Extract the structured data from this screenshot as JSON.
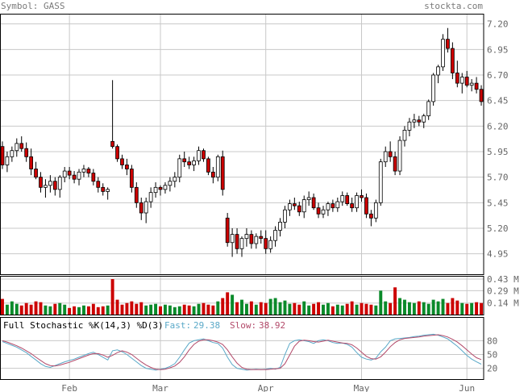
{
  "header": {
    "symbol_label": "Symbol: GASS",
    "site": "stockta.com"
  },
  "colors": {
    "up": "#ffffff",
    "down": "#cc0000",
    "vol_up": "#0a8a2a",
    "vol_down": "#cc0000",
    "grid": "#c8c8c8",
    "axis_text": "#666666",
    "fast_line": "#5aa9c8",
    "slow_line": "#b34a6a"
  },
  "chart_data": [
    {
      "type": "candlestick",
      "ylim": [
        4.75,
        7.3
      ],
      "y_ticks": [
        4.95,
        5.2,
        5.45,
        5.7,
        5.95,
        6.2,
        6.45,
        6.7,
        6.95,
        7.2
      ],
      "y_tick_labels": [
        "4.95",
        "5.20",
        "5.45",
        "5.70",
        "5.95",
        "6.20",
        "6.45",
        "6.70",
        "6.95",
        "7.20"
      ],
      "x_labels": [
        "Feb",
        "Mar",
        "Apr",
        "May",
        "Jun"
      ],
      "x_label_index": [
        14,
        33,
        55,
        75,
        97
      ],
      "ohlc": [
        [
          6.0,
          6.05,
          5.78,
          5.82
        ],
        [
          5.82,
          5.95,
          5.75,
          5.9
        ],
        [
          5.9,
          6.0,
          5.85,
          5.96
        ],
        [
          5.96,
          6.08,
          5.9,
          6.03
        ],
        [
          6.03,
          6.1,
          5.95,
          5.98
        ],
        [
          5.98,
          6.04,
          5.85,
          5.9
        ],
        [
          5.9,
          5.98,
          5.72,
          5.78
        ],
        [
          5.78,
          5.85,
          5.68,
          5.7
        ],
        [
          5.7,
          5.75,
          5.55,
          5.6
        ],
        [
          5.6,
          5.68,
          5.5,
          5.62
        ],
        [
          5.62,
          5.72,
          5.55,
          5.66
        ],
        [
          5.66,
          5.7,
          5.52,
          5.58
        ],
        [
          5.58,
          5.72,
          5.5,
          5.7
        ],
        [
          5.7,
          5.8,
          5.65,
          5.76
        ],
        [
          5.76,
          5.8,
          5.68,
          5.72
        ],
        [
          5.72,
          5.76,
          5.64,
          5.68
        ],
        [
          5.68,
          5.78,
          5.62,
          5.75
        ],
        [
          5.75,
          5.82,
          5.7,
          5.78
        ],
        [
          5.78,
          5.8,
          5.7,
          5.74
        ],
        [
          5.74,
          5.78,
          5.62,
          5.66
        ],
        [
          5.66,
          5.7,
          5.55,
          5.6
        ],
        [
          5.6,
          5.64,
          5.52,
          5.56
        ],
        [
          5.56,
          5.6,
          5.48,
          5.58
        ],
        [
          6.05,
          6.65,
          5.98,
          6.0
        ],
        [
          6.0,
          6.02,
          5.85,
          5.88
        ],
        [
          5.88,
          5.92,
          5.78,
          5.82
        ],
        [
          5.82,
          5.88,
          5.72,
          5.78
        ],
        [
          5.78,
          5.82,
          5.55,
          5.6
        ],
        [
          5.6,
          5.65,
          5.4,
          5.45
        ],
        [
          5.45,
          5.5,
          5.28,
          5.35
        ],
        [
          5.35,
          5.5,
          5.25,
          5.46
        ],
        [
          5.46,
          5.6,
          5.4,
          5.55
        ],
        [
          5.55,
          5.65,
          5.5,
          5.6
        ],
        [
          5.6,
          5.62,
          5.52,
          5.58
        ],
        [
          5.58,
          5.65,
          5.54,
          5.62
        ],
        [
          5.62,
          5.7,
          5.56,
          5.66
        ],
        [
          5.66,
          5.75,
          5.6,
          5.7
        ],
        [
          5.7,
          5.92,
          5.65,
          5.88
        ],
        [
          5.88,
          5.95,
          5.8,
          5.85
        ],
        [
          5.85,
          5.9,
          5.78,
          5.82
        ],
        [
          5.82,
          5.9,
          5.76,
          5.86
        ],
        [
          5.86,
          6.0,
          5.82,
          5.96
        ],
        [
          5.96,
          5.98,
          5.85,
          5.88
        ],
        [
          5.88,
          5.9,
          5.72,
          5.75
        ],
        [
          5.75,
          5.8,
          5.64,
          5.7
        ],
        [
          5.7,
          5.92,
          5.66,
          5.9
        ],
        [
          5.9,
          5.96,
          5.52,
          5.58
        ],
        [
          5.3,
          5.35,
          5.02,
          5.06
        ],
        [
          5.06,
          5.2,
          4.92,
          5.14
        ],
        [
          5.14,
          5.2,
          4.95,
          5.0
        ],
        [
          5.0,
          5.12,
          4.92,
          5.1
        ],
        [
          5.1,
          5.2,
          5.02,
          5.14
        ],
        [
          5.14,
          5.18,
          5.0,
          5.05
        ],
        [
          5.05,
          5.15,
          5.0,
          5.12
        ],
        [
          5.12,
          5.18,
          5.05,
          5.1
        ],
        [
          5.1,
          5.18,
          4.95,
          5.0
        ],
        [
          5.0,
          5.12,
          4.96,
          5.08
        ],
        [
          5.08,
          5.22,
          5.02,
          5.18
        ],
        [
          5.18,
          5.3,
          5.12,
          5.26
        ],
        [
          5.26,
          5.42,
          5.2,
          5.38
        ],
        [
          5.38,
          5.48,
          5.32,
          5.44
        ],
        [
          5.44,
          5.5,
          5.38,
          5.42
        ],
        [
          5.42,
          5.46,
          5.32,
          5.36
        ],
        [
          5.36,
          5.52,
          5.3,
          5.48
        ],
        [
          5.48,
          5.56,
          5.42,
          5.5
        ],
        [
          5.5,
          5.54,
          5.38,
          5.4
        ],
        [
          5.4,
          5.45,
          5.3,
          5.34
        ],
        [
          5.34,
          5.42,
          5.3,
          5.38
        ],
        [
          5.38,
          5.46,
          5.32,
          5.44
        ],
        [
          5.44,
          5.48,
          5.36,
          5.4
        ],
        [
          5.4,
          5.5,
          5.36,
          5.46
        ],
        [
          5.46,
          5.56,
          5.42,
          5.52
        ],
        [
          5.52,
          5.55,
          5.42,
          5.44
        ],
        [
          5.44,
          5.5,
          5.36,
          5.4
        ],
        [
          5.4,
          5.55,
          5.36,
          5.52
        ],
        [
          5.52,
          5.58,
          5.46,
          5.5
        ],
        [
          5.5,
          5.54,
          5.3,
          5.34
        ],
        [
          5.34,
          5.38,
          5.22,
          5.3
        ],
        [
          5.3,
          5.48,
          5.26,
          5.45
        ],
        [
          5.45,
          5.88,
          5.42,
          5.85
        ],
        [
          5.85,
          6.0,
          5.8,
          5.95
        ],
        [
          5.95,
          6.05,
          5.85,
          5.9
        ],
        [
          5.9,
          5.95,
          5.72,
          5.76
        ],
        [
          5.76,
          6.1,
          5.72,
          6.06
        ],
        [
          6.06,
          6.2,
          6.0,
          6.16
        ],
        [
          6.16,
          6.28,
          6.1,
          6.24
        ],
        [
          6.24,
          6.32,
          6.18,
          6.26
        ],
        [
          6.26,
          6.3,
          6.2,
          6.24
        ],
        [
          6.24,
          6.32,
          6.18,
          6.3
        ],
        [
          6.3,
          6.46,
          6.26,
          6.44
        ],
        [
          6.44,
          6.72,
          6.4,
          6.7
        ],
        [
          6.7,
          6.8,
          6.62,
          6.78
        ],
        [
          6.78,
          7.1,
          6.74,
          7.05
        ],
        [
          7.05,
          7.16,
          6.92,
          6.96
        ],
        [
          6.96,
          7.02,
          6.66,
          6.72
        ],
        [
          6.72,
          6.84,
          6.58,
          6.62
        ],
        [
          6.62,
          6.72,
          6.52,
          6.68
        ],
        [
          6.68,
          6.74,
          6.58,
          6.6
        ],
        [
          6.6,
          6.66,
          6.54,
          6.62
        ],
        [
          6.62,
          6.68,
          6.52,
          6.56
        ],
        [
          6.56,
          6.6,
          6.4,
          6.44
        ]
      ]
    },
    {
      "type": "bar",
      "series_name": "Volume",
      "y_tick_labels": [
        "0.43 M",
        "0.29 M",
        "0.14 M"
      ],
      "y_ticks": [
        0.43,
        0.29,
        0.14
      ],
      "ylim": [
        0,
        0.45
      ],
      "values": [
        0.19,
        0.12,
        0.16,
        0.13,
        0.11,
        0.14,
        0.12,
        0.16,
        0.15,
        0.11,
        0.1,
        0.13,
        0.14,
        0.12,
        0.08,
        0.1,
        0.09,
        0.11,
        0.1,
        0.13,
        0.09,
        0.1,
        0.11,
        0.43,
        0.18,
        0.12,
        0.14,
        0.16,
        0.13,
        0.15,
        0.11,
        0.12,
        0.13,
        0.1,
        0.12,
        0.11,
        0.09,
        0.1,
        0.12,
        0.11,
        0.1,
        0.13,
        0.14,
        0.12,
        0.11,
        0.16,
        0.2,
        0.27,
        0.24,
        0.15,
        0.18,
        0.13,
        0.16,
        0.12,
        0.15,
        0.14,
        0.19,
        0.2,
        0.15,
        0.17,
        0.13,
        0.14,
        0.12,
        0.16,
        0.11,
        0.13,
        0.15,
        0.12,
        0.14,
        0.1,
        0.12,
        0.11,
        0.13,
        0.16,
        0.12,
        0.14,
        0.13,
        0.12,
        0.11,
        0.29,
        0.16,
        0.14,
        0.33,
        0.2,
        0.18,
        0.15,
        0.14,
        0.16,
        0.15,
        0.13,
        0.18,
        0.16,
        0.19,
        0.14,
        0.2,
        0.17,
        0.14,
        0.13,
        0.14,
        0.15,
        0.14
      ]
    },
    {
      "type": "line",
      "title": "Full Stochastic %K(14,3) %D(3)",
      "fast_label": "Fast:",
      "fast_value": "29.38",
      "slow_label": "Slow:",
      "slow_value": "38.92",
      "y_tick_labels": [
        "80",
        "50",
        "20"
      ],
      "y_ticks": [
        80,
        50,
        20
      ],
      "ylim": [
        0,
        100
      ],
      "series": [
        {
          "values": [
            78,
            74,
            70,
            66,
            60,
            54,
            46,
            38,
            30,
            24,
            22,
            26,
            30,
            34,
            37,
            40,
            44,
            48,
            52,
            55,
            50,
            44,
            38,
            58,
            60,
            56,
            50,
            42,
            34,
            26,
            20,
            18,
            16,
            18,
            20,
            24,
            30,
            44,
            60,
            75,
            80,
            82,
            84,
            80,
            76,
            74,
            64,
            44,
            28,
            20,
            18,
            16,
            17,
            18,
            17,
            18,
            20,
            18,
            22,
            50,
            74,
            80,
            82,
            80,
            78,
            74,
            80,
            82,
            80,
            76,
            74,
            75,
            72,
            66,
            54,
            44,
            40,
            38,
            42,
            56,
            66,
            80,
            84,
            85,
            86,
            87,
            89,
            90,
            92,
            93,
            94,
            92,
            88,
            84,
            76,
            68,
            58,
            48,
            40,
            34,
            29
          ]
        },
        {
          "values": [
            80,
            77,
            73,
            69,
            64,
            58,
            52,
            44,
            37,
            30,
            26,
            25,
            27,
            30,
            33,
            37,
            41,
            45,
            49,
            52,
            52,
            49,
            44,
            48,
            54,
            58,
            55,
            50,
            42,
            34,
            27,
            22,
            18,
            17,
            18,
            21,
            25,
            33,
            45,
            60,
            72,
            79,
            82,
            82,
            80,
            77,
            72,
            60,
            45,
            31,
            22,
            18,
            17,
            17,
            17,
            17,
            18,
            19,
            20,
            30,
            49,
            68,
            79,
            81,
            80,
            78,
            77,
            79,
            81,
            79,
            77,
            75,
            74,
            71,
            64,
            55,
            46,
            41,
            40,
            45,
            55,
            67,
            76,
            82,
            85,
            86,
            87,
            88,
            90,
            91,
            92,
            93,
            91,
            88,
            83,
            77,
            69,
            60,
            51,
            43,
            38.92
          ]
        }
      ]
    }
  ]
}
